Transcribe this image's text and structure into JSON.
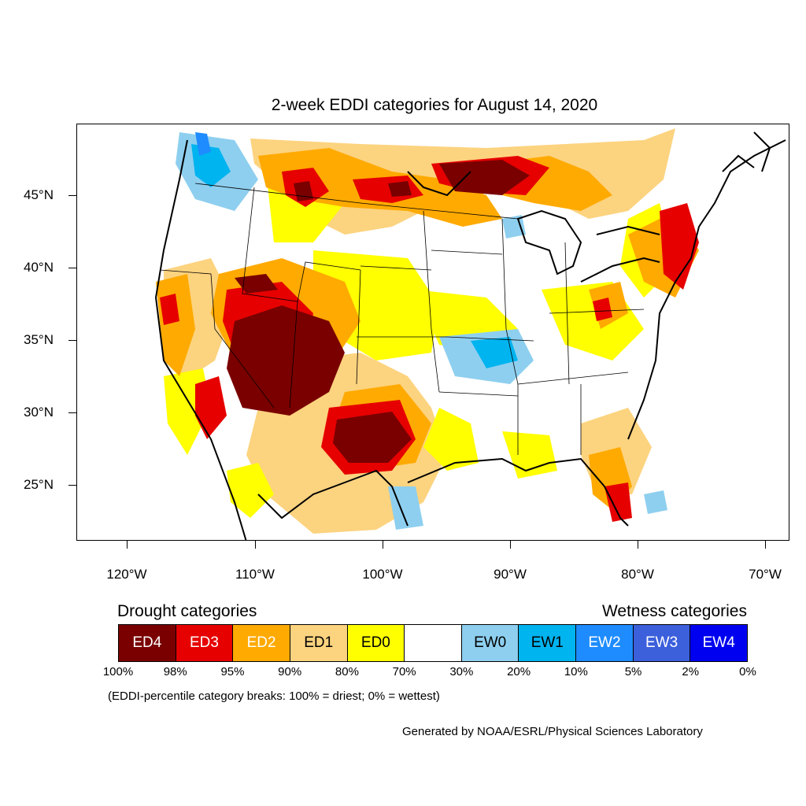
{
  "title": "2-week EDDI categories for August 14, 2020",
  "latitude_labels": [
    "45°N",
    "40°N",
    "35°N",
    "30°N",
    "25°N"
  ],
  "longitude_labels": [
    "120°W",
    "110°W",
    "100°W",
    "90°W",
    "80°W",
    "70°W"
  ],
  "legend": {
    "drought_heading": "Drought categories",
    "wetness_heading": "Wetness categories",
    "categories": [
      {
        "label": "ED4",
        "color": "#7a0000",
        "text_color": "#ffffff"
      },
      {
        "label": "ED3",
        "color": "#e60000",
        "text_color": "#ffffff"
      },
      {
        "label": "ED2",
        "color": "#ffaa00",
        "text_color": "#ffffff"
      },
      {
        "label": "ED1",
        "color": "#fcd37f",
        "text_color": "#000000"
      },
      {
        "label": "ED0",
        "color": "#ffff00",
        "text_color": "#000000"
      },
      {
        "label": "",
        "color": "#ffffff",
        "text_color": "#000000"
      },
      {
        "label": "EW0",
        "color": "#8ecfef",
        "text_color": "#000000"
      },
      {
        "label": "EW1",
        "color": "#00b4f0",
        "text_color": "#000000"
      },
      {
        "label": "EW2",
        "color": "#1e8cff",
        "text_color": "#ffffff"
      },
      {
        "label": "EW3",
        "color": "#3c5fdc",
        "text_color": "#ffffff"
      },
      {
        "label": "EW4",
        "color": "#0000f0",
        "text_color": "#ffffff"
      }
    ],
    "percent_breaks": [
      "100%",
      "98%",
      "95%",
      "90%",
      "80%",
      "70%",
      "30%",
      "20%",
      "10%",
      "5%",
      "2%",
      "0%"
    ]
  },
  "note": "(EDDI-percentile category breaks: 100% = driest; 0% = wettest)",
  "credit": "Generated by NOAA/ESRL/Physical Sciences Laboratory"
}
